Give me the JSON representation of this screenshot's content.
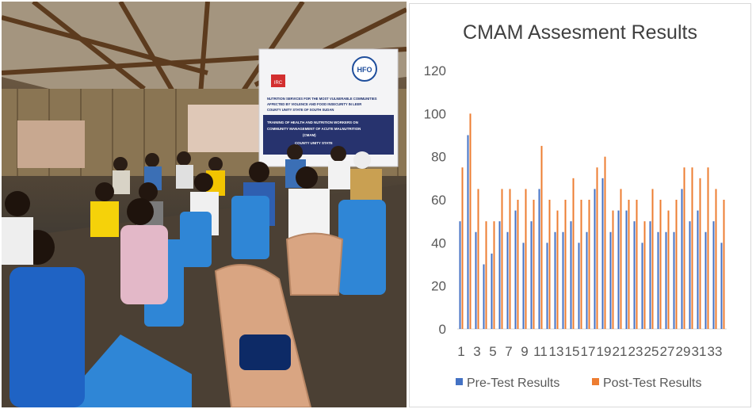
{
  "photo": {
    "alt": "Group of health and nutrition workers seated on plastic chairs inside a thatched hall during a CMAM training session, facing a banner",
    "banner_logos": [
      "IRC",
      "HFO"
    ],
    "banner_lines": [
      "NUTRITION SERVICES FOR THE MOST VULNERABLE COMMUNITIES",
      "AFFECTED BY VIOLENCE AND FOOD INSECURITY IN LEER",
      "COUNTY UNITY STATE OF SOUTH SUDAN",
      "TRAINING OF HEALTH AND NUTRITION WORKERS ON",
      "COMMUNITY MANAGEMENT OF ACUTE MALNUTRITION",
      "(CMAM)",
      "COUNTY UNITY STATE"
    ]
  },
  "chart_data": {
    "type": "bar",
    "title": "CMAM Assesment Results",
    "xlabel": "",
    "ylabel": "",
    "ylim": [
      0,
      120
    ],
    "yticks": [
      0,
      20,
      40,
      60,
      80,
      100,
      120
    ],
    "grid": false,
    "legend_position": "bottom",
    "categories": [
      1,
      2,
      3,
      4,
      5,
      6,
      7,
      8,
      9,
      10,
      11,
      12,
      13,
      14,
      15,
      16,
      17,
      18,
      19,
      20,
      21,
      22,
      23,
      24,
      25,
      26,
      27,
      28,
      29,
      30,
      31,
      32,
      33,
      34
    ],
    "x_tick_labels": [
      "1",
      "3",
      "5",
      "7",
      "9",
      "11",
      "13",
      "15",
      "17",
      "19",
      "21",
      "23",
      "25",
      "27",
      "29",
      "31",
      "33"
    ],
    "series": [
      {
        "name": "Pre-Test Results",
        "color": "#4472c4",
        "values": [
          50,
          90,
          45,
          30,
          35,
          50,
          45,
          55,
          40,
          50,
          65,
          40,
          45,
          45,
          50,
          40,
          45,
          65,
          70,
          45,
          55,
          55,
          50,
          40,
          50,
          45,
          45,
          45,
          65,
          50,
          55,
          45,
          50,
          40
        ]
      },
      {
        "name": "Post-Test Results",
        "color": "#ed7d31",
        "values": [
          75,
          100,
          65,
          50,
          50,
          65,
          65,
          60,
          65,
          60,
          85,
          60,
          55,
          60,
          70,
          60,
          60,
          75,
          80,
          55,
          65,
          60,
          60,
          50,
          65,
          60,
          55,
          60,
          75,
          75,
          70,
          75,
          65,
          60
        ]
      }
    ]
  }
}
